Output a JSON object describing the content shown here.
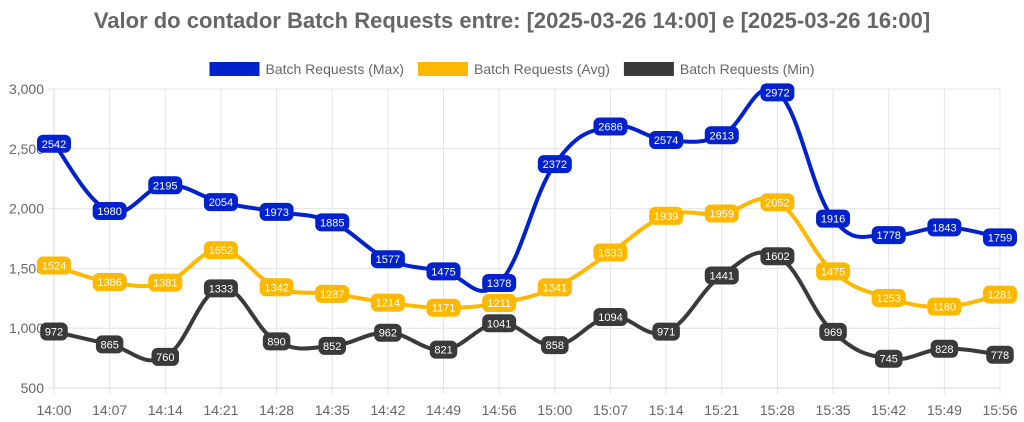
{
  "chart_data": {
    "type": "line",
    "title": "Valor do contador Batch Requests entre: [2025-03-26 14:00] e [2025-03-26 16:00]",
    "xlabel": "",
    "ylabel": "",
    "ylim": [
      500,
      3000
    ],
    "yticks": [
      "500",
      "1,000",
      "1,500",
      "2,000",
      "2,500",
      "3,000"
    ],
    "ytick_values": [
      500,
      1000,
      1500,
      2000,
      2500,
      3000
    ],
    "grid": true,
    "legend_position": "top",
    "categories": [
      "14:00",
      "14:07",
      "14:14",
      "14:21",
      "14:28",
      "14:35",
      "14:42",
      "14:49",
      "14:56",
      "15:00",
      "15:07",
      "15:14",
      "15:21",
      "15:28",
      "15:35",
      "15:42",
      "15:49",
      "15:56"
    ],
    "series": [
      {
        "name": "Batch Requests (Max)",
        "color": "#0022cc",
        "values": [
          2542,
          1980,
          2195,
          2054,
          1973,
          1885,
          1577,
          1475,
          1378,
          2372,
          2686,
          2574,
          2613,
          2972,
          1916,
          1778,
          1843,
          1759
        ]
      },
      {
        "name": "Batch Requests (Avg)",
        "color": "#ffb800",
        "values": [
          1524,
          1386,
          1381,
          1652,
          1342,
          1287,
          1214,
          1171,
          1211,
          1341,
          1633,
          1939,
          1959,
          2052,
          1475,
          1253,
          1180,
          1281
        ]
      },
      {
        "name": "Batch Requests (Min)",
        "color": "#3a3a3a",
        "values": [
          972,
          865,
          760,
          1333,
          890,
          852,
          962,
          821,
          1041,
          858,
          1094,
          971,
          1441,
          1602,
          969,
          745,
          828,
          778
        ]
      }
    ]
  }
}
